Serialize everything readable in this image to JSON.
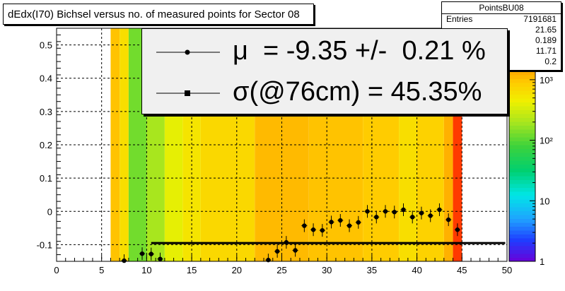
{
  "title": "dEdx(I70) Bichsel versus no. of measured points for Sector 08",
  "stats": {
    "name": "PointsBU08",
    "rows": [
      {
        "label": "Entries",
        "value": "7191681"
      },
      {
        "label": "",
        "value": "21.65"
      },
      {
        "label": "",
        "value": "0.189"
      },
      {
        "label": "",
        "value": "11.71"
      },
      {
        "label": "",
        "value": "0.2"
      }
    ]
  },
  "legend": [
    {
      "marker": "circle",
      "text": "μ  = -9.35 +/-  0.21 %"
    },
    {
      "marker": "square",
      "text": "σ(@76cm) = 45.35%"
    }
  ],
  "chart_data": {
    "type": "heatmap",
    "xlim": [
      0,
      50
    ],
    "ylim": [
      -0.15,
      0.55
    ],
    "x_ticks": [
      "0",
      "5",
      "10",
      "15",
      "20",
      "25",
      "30",
      "35",
      "40",
      "45",
      "50"
    ],
    "y_ticks": [
      "-0.1",
      "0",
      "0.1",
      "0.2",
      "0.3",
      "0.4",
      "0.5"
    ],
    "z_scale": "log",
    "z_ticks": [
      "1",
      "10",
      "10²",
      "10³"
    ],
    "grid": true,
    "heatmap_columns": [
      {
        "x0": 6.0,
        "x1": 7.0,
        "level": 3.0
      },
      {
        "x0": 7.0,
        "x1": 8.0,
        "level": 2.8
      },
      {
        "x0": 8.0,
        "x1": 10.0,
        "level": 2.1
      },
      {
        "x0": 10.0,
        "x1": 12.0,
        "level": 2.3
      },
      {
        "x0": 12.0,
        "x1": 14.0,
        "level": 2.6
      },
      {
        "x0": 14.0,
        "x1": 16.0,
        "level": 2.75
      },
      {
        "x0": 16.0,
        "x1": 22.0,
        "level": 2.85
      },
      {
        "x0": 22.0,
        "x1": 28.0,
        "level": 3.05
      },
      {
        "x0": 28.0,
        "x1": 34.0,
        "level": 3.0
      },
      {
        "x0": 34.0,
        "x1": 38.0,
        "level": 2.95
      },
      {
        "x0": 38.0,
        "x1": 40.0,
        "level": 2.8
      },
      {
        "x0": 40.0,
        "x1": 43.0,
        "level": 2.9
      },
      {
        "x0": 43.0,
        "x1": 44.0,
        "level": 3.1
      },
      {
        "x0": 44.0,
        "x1": 45.0,
        "level": 3.6
      }
    ],
    "mean_points": [
      {
        "x": 7.5,
        "y": -0.148
      },
      {
        "x": 9.5,
        "y": -0.127
      },
      {
        "x": 10.5,
        "y": -0.128
      },
      {
        "x": 11.5,
        "y": -0.143
      },
      {
        "x": 23.5,
        "y": -0.146
      },
      {
        "x": 24.5,
        "y": -0.12
      },
      {
        "x": 25.5,
        "y": -0.093
      },
      {
        "x": 26.5,
        "y": -0.117
      },
      {
        "x": 27.5,
        "y": -0.043
      },
      {
        "x": 28.5,
        "y": -0.055
      },
      {
        "x": 29.5,
        "y": -0.057
      },
      {
        "x": 30.5,
        "y": -0.032
      },
      {
        "x": 31.5,
        "y": -0.027
      },
      {
        "x": 32.5,
        "y": -0.043
      },
      {
        "x": 33.5,
        "y": -0.033
      },
      {
        "x": 34.5,
        "y": 0.0
      },
      {
        "x": 35.5,
        "y": -0.017
      },
      {
        "x": 36.5,
        "y": 0.0
      },
      {
        "x": 37.5,
        "y": -0.002
      },
      {
        "x": 38.5,
        "y": 0.005
      },
      {
        "x": 39.5,
        "y": -0.017
      },
      {
        "x": 40.5,
        "y": -0.005
      },
      {
        "x": 41.5,
        "y": -0.013
      },
      {
        "x": 42.5,
        "y": 0.005
      },
      {
        "x": 43.5,
        "y": -0.025
      },
      {
        "x": 44.5,
        "y": -0.055
      }
    ],
    "fit_line": {
      "x0": 10.5,
      "x1": 49.8,
      "y": -0.095
    }
  },
  "colors": {
    "line": "#000000",
    "legend_bg": "#f0f0f0"
  }
}
